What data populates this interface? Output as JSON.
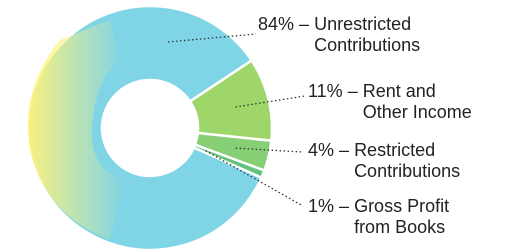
{
  "chart_data": {
    "type": "pie",
    "categories": [
      "Unrestricted Contributions",
      "Rent and Other Income",
      "Restricted Contributions",
      "Gross Profit from Books"
    ],
    "values": [
      84,
      11,
      4,
      1
    ],
    "value_labels": [
      "84%",
      "11%",
      "4%",
      "1%"
    ],
    "separator": "–",
    "colors": [
      "#7fd4e6",
      "#9fd66a",
      "#86cf74",
      "#62c27e"
    ]
  }
}
